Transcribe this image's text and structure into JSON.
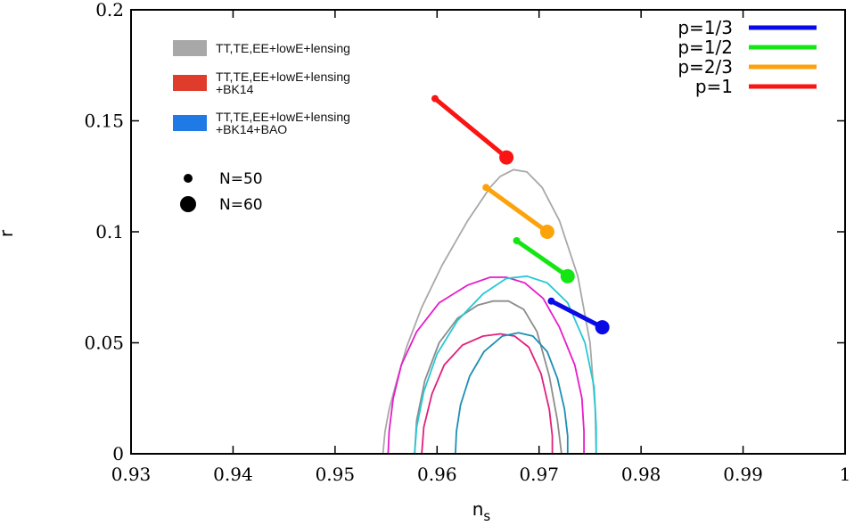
{
  "chart_data": {
    "type": "line",
    "xlabel": "n",
    "xlabel_sub": "s",
    "ylabel": "r",
    "xlim": [
      0.93,
      1.0
    ],
    "ylim": [
      0,
      0.2
    ],
    "x_ticks": [
      0.93,
      0.94,
      0.95,
      0.96,
      0.97,
      0.98,
      0.99,
      1.0
    ],
    "x_tick_labels": [
      "0.93",
      "0.94",
      "0.95",
      "0.96",
      "0.97",
      "0.98",
      "0.99",
      "1"
    ],
    "y_ticks": [
      0,
      0.05,
      0.1,
      0.15,
      0.2
    ],
    "y_tick_labels": [
      "0",
      "0.05",
      "0.1",
      "0.15",
      "0.2"
    ],
    "grid": false,
    "constraint_legend": [
      {
        "label_lines": [
          "TT,TE,EE+lowE+lensing"
        ],
        "color": "#a8a8a8"
      },
      {
        "label_lines": [
          "TT,TE,EE+lowE+lensing",
          "+BK14"
        ],
        "color": "#e03c2c"
      },
      {
        "label_lines": [
          "TT,TE,EE+lowE+lensing",
          "+BK14+BAO"
        ],
        "color": "#1f7ae6"
      }
    ],
    "marker_legend": [
      {
        "label": "N=50",
        "size": "small"
      },
      {
        "label": "N=60",
        "size": "large"
      }
    ],
    "series": [
      {
        "name": "p=1/3",
        "color": "#0a0ae6",
        "x": [
          0.9712,
          0.9762
        ],
        "y": [
          0.0688,
          0.057
        ]
      },
      {
        "name": "p=1/2",
        "color": "#14e614",
        "x": [
          0.9678,
          0.9728
        ],
        "y": [
          0.096,
          0.08
        ]
      },
      {
        "name": "p=2/3",
        "color": "#fca30c",
        "x": [
          0.9648,
          0.9708
        ],
        "y": [
          0.12,
          0.1
        ]
      },
      {
        "name": "p=1",
        "color": "#fa1414",
        "x": [
          0.9598,
          0.9668
        ],
        "y": [
          0.16,
          0.1335
        ]
      }
    ],
    "contours": [
      {
        "color": "#a8a8a8",
        "level": "outer",
        "x": [
          0.9547,
          0.9549,
          0.9553,
          0.956,
          0.957,
          0.9585,
          0.9605,
          0.963,
          0.9652,
          0.9662,
          0.9675,
          0.9688,
          0.9703,
          0.972,
          0.9738,
          0.975,
          0.9755,
          0.9756
        ],
        "y": [
          0,
          0.01,
          0.02,
          0.032,
          0.048,
          0.066,
          0.085,
          0.105,
          0.12,
          0.125,
          0.128,
          0.127,
          0.12,
          0.105,
          0.08,
          0.05,
          0.02,
          0
        ]
      },
      {
        "color": "#8c8c8c",
        "level": "inner",
        "x": [
          0.9578,
          0.958,
          0.9588,
          0.9602,
          0.962,
          0.964,
          0.9655,
          0.967,
          0.9685,
          0.9698,
          0.971,
          0.9718,
          0.9722
        ],
        "y": [
          0,
          0.015,
          0.033,
          0.05,
          0.061,
          0.067,
          0.0688,
          0.0688,
          0.065,
          0.055,
          0.035,
          0.015,
          0
        ]
      },
      {
        "color": "#e81cc8",
        "level": "outer",
        "x": [
          0.9552,
          0.9553,
          0.9557,
          0.9565,
          0.958,
          0.9602,
          0.963,
          0.9652,
          0.9668,
          0.9686,
          0.9704,
          0.972,
          0.9735,
          0.9742,
          0.9744,
          0.9744
        ],
        "y": [
          0,
          0.01,
          0.025,
          0.04,
          0.055,
          0.068,
          0.076,
          0.0795,
          0.0795,
          0.077,
          0.07,
          0.057,
          0.04,
          0.025,
          0.01,
          0
        ]
      },
      {
        "color": "#e0207c",
        "level": "inner",
        "x": [
          0.9585,
          0.9587,
          0.9595,
          0.9607,
          0.9625,
          0.9645,
          0.9662,
          0.9676,
          0.969,
          0.9702,
          0.971,
          0.9713,
          0.9713
        ],
        "y": [
          0,
          0.012,
          0.027,
          0.04,
          0.049,
          0.053,
          0.054,
          0.053,
          0.048,
          0.036,
          0.02,
          0.008,
          0
        ]
      },
      {
        "color": "#28c8d4",
        "level": "outer",
        "x": [
          0.9578,
          0.958,
          0.9587,
          0.96,
          0.962,
          0.9645,
          0.9668,
          0.9688,
          0.9708,
          0.9728,
          0.9745,
          0.9754,
          0.9756,
          0.9756
        ],
        "y": [
          0,
          0.012,
          0.028,
          0.045,
          0.06,
          0.072,
          0.079,
          0.08,
          0.077,
          0.068,
          0.05,
          0.03,
          0.012,
          0
        ]
      },
      {
        "color": "#1e8eb4",
        "level": "inner",
        "x": [
          0.9618,
          0.9619,
          0.9623,
          0.9632,
          0.9646,
          0.9664,
          0.968,
          0.9694,
          0.9708,
          0.9718,
          0.9725,
          0.9728,
          0.9728
        ],
        "y": [
          0,
          0.01,
          0.022,
          0.035,
          0.046,
          0.053,
          0.0545,
          0.053,
          0.046,
          0.034,
          0.02,
          0.008,
          0
        ]
      }
    ]
  }
}
